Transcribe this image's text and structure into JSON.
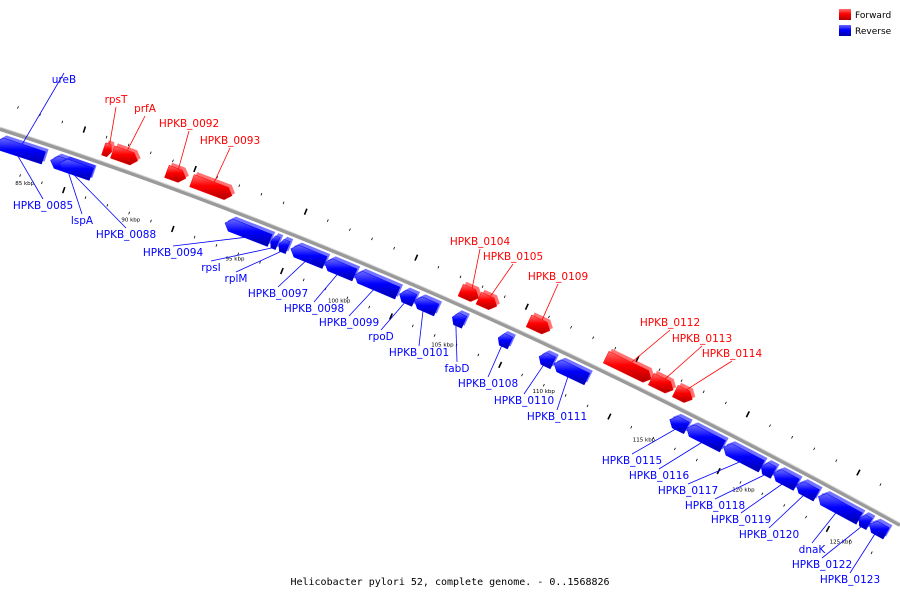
{
  "colors": {
    "forward": "#ff0000",
    "reverse": "#0000ff",
    "backbone": "#888888"
  },
  "legend": {
    "forward_label": "Forward",
    "reverse_label": "Reverse"
  },
  "caption": "Helicobacter pylori 52, complete genome. - 0..1568826",
  "ticks": [
    "85 kbp",
    "90 kbp",
    "95 kbp",
    "100 kbp",
    "105 kbp",
    "110 kbp",
    "115 kbp",
    "120 kbp",
    "125 kbp"
  ],
  "genes_forward": [
    "rpsT",
    "prfA",
    "HPKB_0092",
    "HPKB_0093",
    "HPKB_0104",
    "HPKB_0105",
    "HPKB_0109",
    "HPKB_0112",
    "HPKB_0113",
    "HPKB_0114"
  ],
  "genes_reverse": [
    "ureB",
    "HPKB_0085",
    "lspA",
    "HPKB_0088",
    "HPKB_0094",
    "rpsI",
    "rplM",
    "HPKB_0097",
    "HPKB_0098",
    "HPKB_0099",
    "rpoD",
    "HPKB_0101",
    "fabD",
    "HPKB_0108",
    "HPKB_0110",
    "HPKB_0111",
    "HPKB_0115",
    "HPKB_0116",
    "HPKB_0117",
    "HPKB_0118",
    "HPKB_0119",
    "HPKB_0120",
    "dnaK",
    "HPKB_0122",
    "HPKB_0123"
  ]
}
